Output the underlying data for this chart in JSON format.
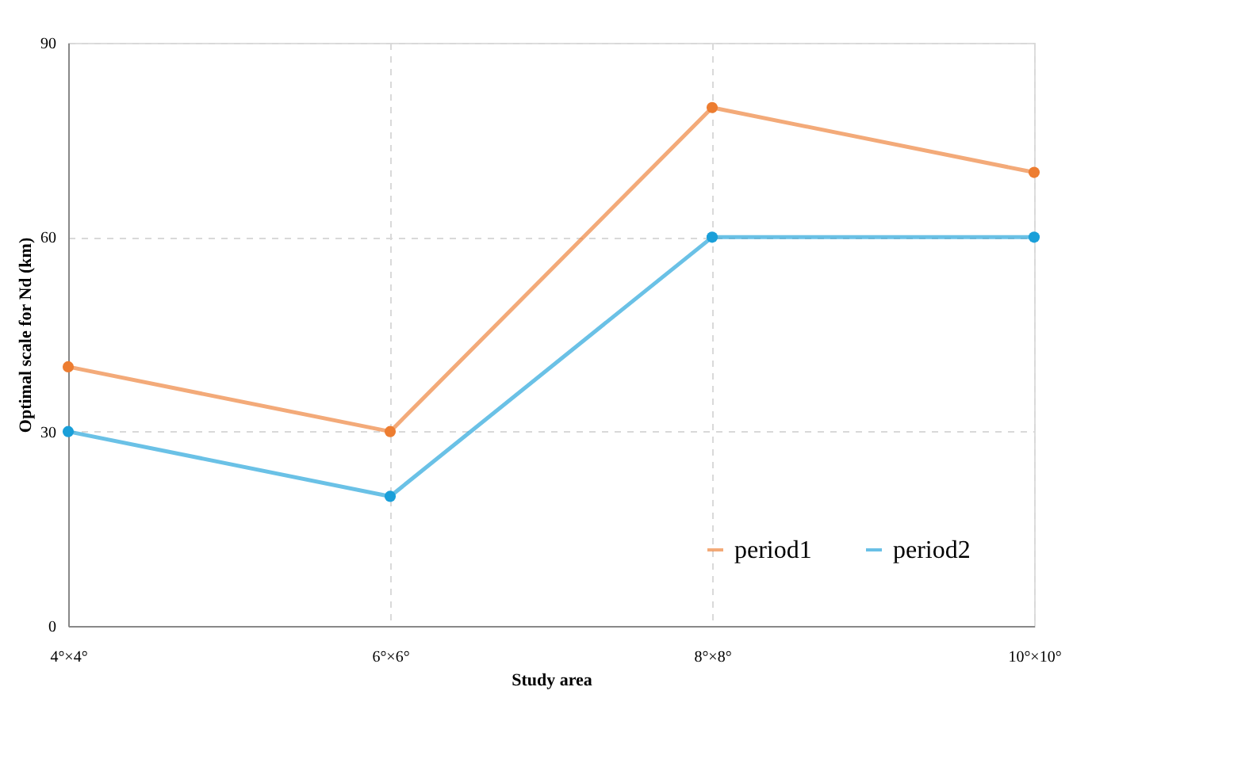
{
  "chart_data": {
    "type": "line",
    "xlabel": "Study area",
    "ylabel": "Optimal scale for Nd (km)",
    "categories": [
      "4°×4°",
      "6°×6°",
      "8°×8°",
      "10°×10°"
    ],
    "series": [
      {
        "name": "period1",
        "color": "#ed7d31",
        "values": [
          40,
          30,
          80,
          70
        ]
      },
      {
        "name": "period2",
        "color": "#1a9fd9",
        "values": [
          30,
          20,
          60,
          60
        ]
      }
    ],
    "ylim": [
      0,
      90
    ],
    "yticks": [
      0,
      30,
      60,
      90
    ],
    "grid": true,
    "legend": "bottom right",
    "marker": "circle",
    "line_style": "solid"
  }
}
